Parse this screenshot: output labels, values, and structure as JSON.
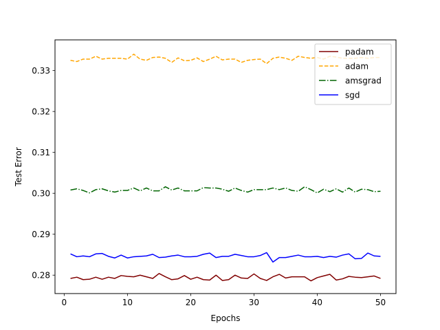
{
  "chart_data": {
    "type": "line",
    "title": "",
    "xlabel": "Epochs",
    "ylabel": "Test Error",
    "xlim": [
      -1.45,
      52.45
    ],
    "ylim": [
      0.2755,
      0.3375
    ],
    "xticks": [
      0,
      10,
      20,
      30,
      40,
      50
    ],
    "yticks": [
      0.28,
      0.29,
      0.3,
      0.31,
      0.32,
      0.33
    ],
    "ytick_labels": [
      "0.28",
      "0.29",
      "0.30",
      "0.31",
      "0.32",
      "0.33"
    ],
    "grid": false,
    "legend": "top-right",
    "x": [
      1,
      2,
      3,
      4,
      5,
      6,
      7,
      8,
      9,
      10,
      11,
      12,
      13,
      14,
      15,
      16,
      17,
      18,
      19,
      20,
      21,
      22,
      23,
      24,
      25,
      26,
      27,
      28,
      29,
      30,
      31,
      32,
      33,
      34,
      35,
      36,
      37,
      38,
      39,
      40,
      41,
      42,
      43,
      44,
      45,
      46,
      47,
      48,
      49,
      50
    ],
    "series": [
      {
        "name": "padam",
        "color": "#800000",
        "dash": "solid",
        "values": [
          0.2792,
          0.2795,
          0.2789,
          0.279,
          0.2795,
          0.279,
          0.2795,
          0.2792,
          0.2799,
          0.2797,
          0.2796,
          0.28,
          0.2796,
          0.2792,
          0.2804,
          0.2796,
          0.2789,
          0.2791,
          0.2799,
          0.279,
          0.2795,
          0.2789,
          0.2788,
          0.28,
          0.2787,
          0.2789,
          0.28,
          0.2793,
          0.2792,
          0.2803,
          0.2792,
          0.2787,
          0.2796,
          0.2802,
          0.2793,
          0.2796,
          0.2796,
          0.2796,
          0.2786,
          0.2794,
          0.2798,
          0.2802,
          0.2788,
          0.2791,
          0.2797,
          0.2795,
          0.2794,
          0.2796,
          0.2798,
          0.2792
        ]
      },
      {
        "name": "adam",
        "color": "#FFA500",
        "dash": "dashed",
        "values": [
          0.3325,
          0.3322,
          0.3328,
          0.3328,
          0.3335,
          0.3328,
          0.333,
          0.333,
          0.333,
          0.3328,
          0.334,
          0.3328,
          0.3325,
          0.3332,
          0.3333,
          0.333,
          0.332,
          0.3331,
          0.3324,
          0.3325,
          0.3331,
          0.3322,
          0.3328,
          0.3335,
          0.3326,
          0.3328,
          0.3328,
          0.332,
          0.3325,
          0.3327,
          0.3328,
          0.3317,
          0.333,
          0.3333,
          0.333,
          0.3325,
          0.3335,
          0.3332,
          0.333,
          0.3332,
          0.3328,
          0.3335,
          0.3333,
          0.333,
          0.333,
          0.333,
          0.3332,
          0.333,
          0.3332,
          0.3332
        ]
      },
      {
        "name": "amsgrad",
        "color": "#006400",
        "dash": "dashdot",
        "values": [
          0.3008,
          0.3011,
          0.3007,
          0.3001,
          0.3009,
          0.3011,
          0.3006,
          0.3003,
          0.3007,
          0.3007,
          0.3013,
          0.3006,
          0.3013,
          0.3006,
          0.3006,
          0.3016,
          0.3008,
          0.3013,
          0.3006,
          0.3006,
          0.3006,
          0.3014,
          0.3013,
          0.3013,
          0.301,
          0.3005,
          0.3013,
          0.3007,
          0.3003,
          0.3009,
          0.3009,
          0.3009,
          0.3013,
          0.3009,
          0.3013,
          0.3007,
          0.3005,
          0.3016,
          0.3009,
          0.3001,
          0.301,
          0.3004,
          0.3011,
          0.3003,
          0.3013,
          0.3003,
          0.301,
          0.3009,
          0.3004,
          0.3005
        ]
      },
      {
        "name": "sgd",
        "color": "#0000FF",
        "dash": "solid",
        "values": [
          0.2852,
          0.2845,
          0.2847,
          0.2845,
          0.2852,
          0.2853,
          0.2846,
          0.2842,
          0.2849,
          0.2842,
          0.2845,
          0.2846,
          0.2847,
          0.2851,
          0.2843,
          0.2844,
          0.2847,
          0.2849,
          0.2845,
          0.2845,
          0.2846,
          0.2851,
          0.2854,
          0.2843,
          0.2846,
          0.2846,
          0.2851,
          0.2848,
          0.2845,
          0.2845,
          0.2848,
          0.2855,
          0.2832,
          0.2843,
          0.2843,
          0.2846,
          0.2849,
          0.2845,
          0.2845,
          0.2846,
          0.2843,
          0.2846,
          0.2844,
          0.2849,
          0.2852,
          0.284,
          0.2841,
          0.2854,
          0.2847,
          0.2846
        ]
      }
    ]
  }
}
